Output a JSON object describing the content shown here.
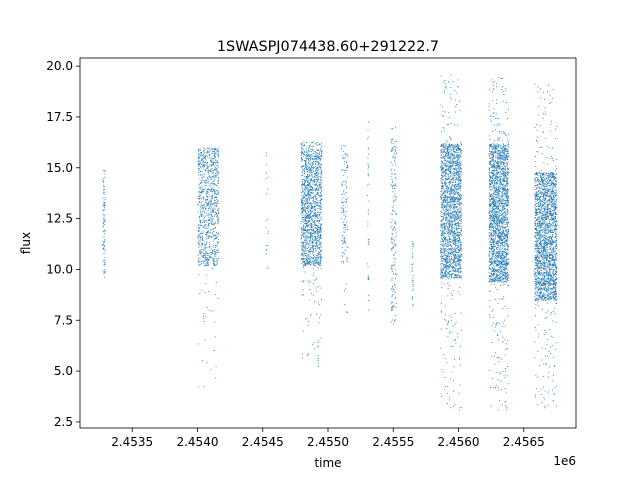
{
  "chart_data": {
    "type": "scatter",
    "title": "1SWASPJ074438.60+291222.7",
    "xlabel": "time",
    "ylabel": "flux",
    "x_offset_label": "1e6",
    "x_tick_labels": [
      "2.4535",
      "2.4540",
      "2.4545",
      "2.4550",
      "2.4555",
      "2.4560",
      "2.4565"
    ],
    "x_ticks": [
      2453500,
      2454000,
      2454500,
      2455000,
      2455500,
      2456000,
      2456500
    ],
    "y_tick_labels": [
      "2.5",
      "5.0",
      "7.5",
      "10.0",
      "12.5",
      "15.0",
      "17.5",
      "20.0"
    ],
    "y_ticks": [
      2.5,
      5.0,
      7.5,
      10.0,
      12.5,
      15.0,
      17.5,
      20.0
    ],
    "xlim": [
      2453100,
      2456900
    ],
    "ylim": [
      2.2,
      20.4
    ],
    "grid": false,
    "point_color": "#1f77b4",
    "clusters": [
      {
        "x_start": 2453270,
        "x_end": 2453290,
        "y_core": [
          9.8,
          14.8
        ],
        "y_min": 9.6,
        "y_max": 14.9,
        "n": 90
      },
      {
        "x_start": 2454000,
        "x_end": 2454160,
        "y_core": [
          10.2,
          15.8
        ],
        "y_min": 4.2,
        "y_max": 16.0,
        "n": 900
      },
      {
        "x_start": 2454520,
        "x_end": 2454540,
        "y_core": [
          10.3,
          15.7
        ],
        "y_min": 10.0,
        "y_max": 15.8,
        "n": 20
      },
      {
        "x_start": 2454790,
        "x_end": 2454950,
        "y_core": [
          10.2,
          15.8
        ],
        "y_min": 4.9,
        "y_max": 16.3,
        "n": 1500
      },
      {
        "x_start": 2455100,
        "x_end": 2455150,
        "y_core": [
          10.4,
          15.6
        ],
        "y_min": 7.0,
        "y_max": 16.2,
        "n": 130
      },
      {
        "x_start": 2455300,
        "x_end": 2455310,
        "y_core": [
          8.5,
          16.5
        ],
        "y_min": 8.0,
        "y_max": 17.3,
        "n": 40
      },
      {
        "x_start": 2455480,
        "x_end": 2455520,
        "y_core": [
          8.0,
          16.5
        ],
        "y_min": 7.2,
        "y_max": 17.6,
        "n": 180
      },
      {
        "x_start": 2455640,
        "x_end": 2455650,
        "y_core": [
          8.5,
          11.4
        ],
        "y_min": 8.2,
        "y_max": 11.5,
        "n": 30
      },
      {
        "x_start": 2455860,
        "x_end": 2456020,
        "y_core": [
          9.6,
          16.2
        ],
        "y_min": 3.1,
        "y_max": 19.6,
        "n": 2000
      },
      {
        "x_start": 2456230,
        "x_end": 2456380,
        "y_core": [
          9.4,
          16.2
        ],
        "y_min": 3.1,
        "y_max": 19.5,
        "n": 2200
      },
      {
        "x_start": 2456580,
        "x_end": 2456750,
        "y_core": [
          8.5,
          14.8
        ],
        "y_min": 3.2,
        "y_max": 19.2,
        "n": 2200
      }
    ]
  }
}
